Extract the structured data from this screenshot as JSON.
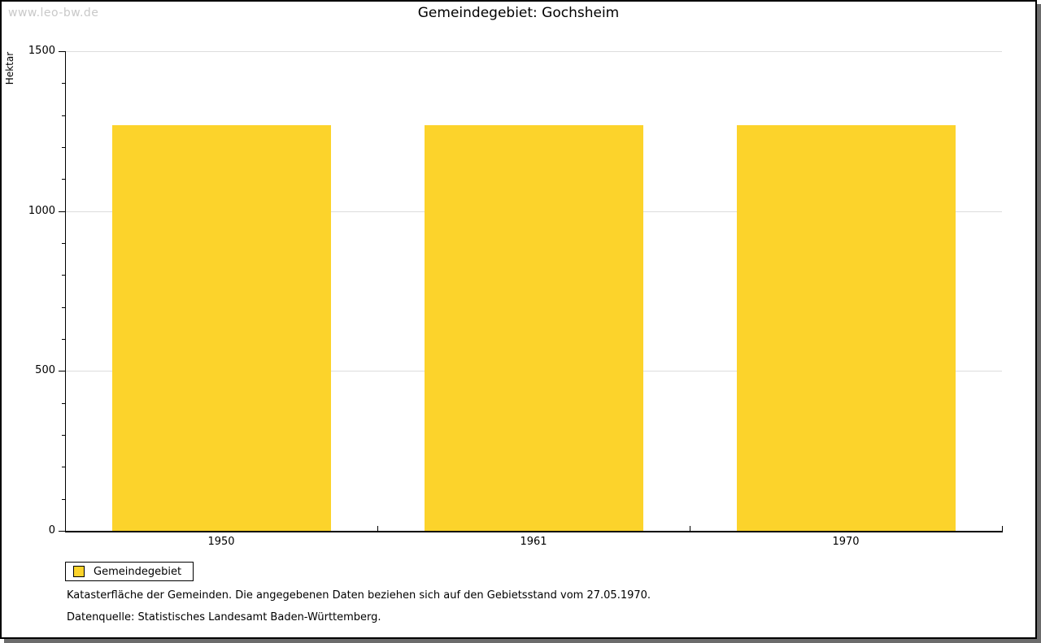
{
  "watermark": "www.leo-bw.de",
  "title": "Gemeindegebiet: Gochsheim",
  "chart_data": {
    "type": "bar",
    "categories": [
      "1950",
      "1961",
      "1970"
    ],
    "series": [
      {
        "name": "Gemeindegebiet",
        "values": [
          1269,
          1269,
          1269
        ]
      }
    ],
    "title": "Gemeindegebiet: Gochsheim",
    "xlabel": "",
    "ylabel": "Hektar",
    "ylim": [
      0,
      1500
    ],
    "y_major_ticks": [
      0,
      500,
      1000,
      1500
    ],
    "y_minor_step": 100,
    "grid": "horizontal-major",
    "legend_position": "bottom-left",
    "bar_color": "#fcd32b"
  },
  "legend": {
    "items": [
      {
        "label": "Gemeindegebiet",
        "color": "#fcd32b"
      }
    ]
  },
  "footnotes": {
    "line1": "Katasterfläche der Gemeinden. Die angegebenen Daten beziehen sich auf den Gebietsstand vom 27.05.1970.",
    "line2": "Datenquelle: Statistisches Landesamt Baden-Württemberg."
  },
  "colors": {
    "bar": "#fcd32b",
    "gridline": "#dddddd",
    "axis": "#000000",
    "watermark": "#c9c9c9",
    "frame_shadow": "#6c6c6c",
    "background": "#ffffff"
  }
}
